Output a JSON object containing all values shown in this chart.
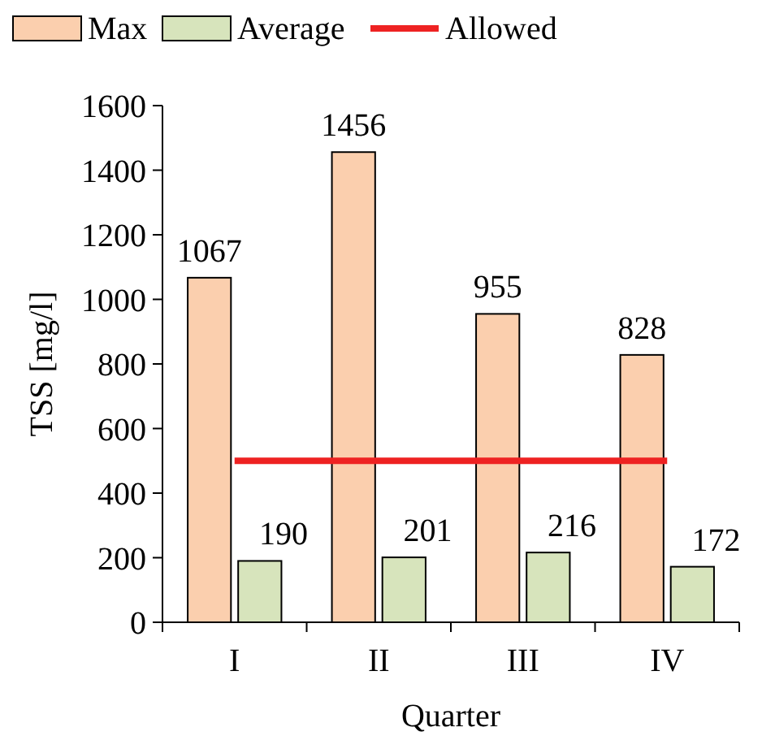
{
  "chart_data": {
    "type": "bar",
    "xlabel": "Quarter",
    "ylabel": "TSS [mg/l]",
    "categories": [
      "I",
      "II",
      "III",
      "IV"
    ],
    "series": [
      {
        "name": "Max",
        "color": "#fbcfae",
        "values": [
          1067,
          1456,
          955,
          828
        ],
        "value_labels": [
          "1067",
          "1456",
          "955",
          "828"
        ]
      },
      {
        "name": "Average",
        "color": "#d7e4bc",
        "values": [
          190,
          201,
          216,
          172
        ],
        "value_labels": [
          "190",
          "201",
          "216",
          "172"
        ]
      },
      {
        "name": "Allowed",
        "type": "line",
        "color": "#ee2222",
        "values": [
          500,
          500,
          500,
          500
        ],
        "marker": "none"
      }
    ],
    "ylim": [
      0,
      1600
    ],
    "yticks": [
      0,
      200,
      400,
      600,
      800,
      1000,
      1200,
      1400,
      1600
    ],
    "grid": false,
    "legend": "top"
  }
}
